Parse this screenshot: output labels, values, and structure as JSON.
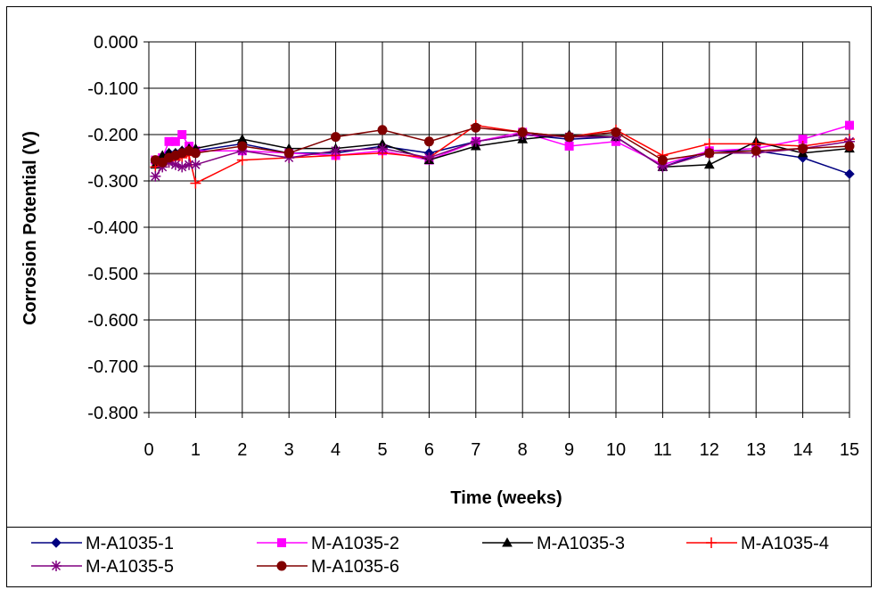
{
  "chart_data": {
    "type": "line",
    "xlabel": "Time (weeks)",
    "ylabel": "Corrosion Potential (V)",
    "xlim": [
      0,
      15
    ],
    "ylim": [
      -0.8,
      0.0
    ],
    "xticks": [
      "0",
      "1",
      "2",
      "3",
      "4",
      "5",
      "6",
      "7",
      "8",
      "9",
      "10",
      "11",
      "12",
      "13",
      "14",
      "15"
    ],
    "yticks": [
      "0.000",
      "-0.100",
      "-0.200",
      "-0.300",
      "-0.400",
      "-0.500",
      "-0.600",
      "-0.700",
      "-0.800"
    ],
    "grid": true,
    "legend_position": "bottom",
    "series": [
      {
        "name": "M-A1035-1",
        "color": "#000080",
        "marker": "diamond",
        "x": [
          0.14,
          0.29,
          0.43,
          0.57,
          0.71,
          0.86,
          1,
          2,
          3,
          4,
          5,
          6,
          7,
          8,
          9,
          10,
          11,
          12,
          13,
          14,
          15
        ],
        "y": [
          -0.26,
          -0.25,
          -0.24,
          -0.24,
          -0.235,
          -0.235,
          -0.235,
          -0.22,
          -0.24,
          -0.24,
          -0.225,
          -0.24,
          -0.215,
          -0.2,
          -0.21,
          -0.205,
          -0.27,
          -0.235,
          -0.235,
          -0.25,
          -0.285
        ]
      },
      {
        "name": "M-A1035-2",
        "color": "#FF00FF",
        "marker": "square",
        "x": [
          0.14,
          0.29,
          0.43,
          0.57,
          0.71,
          0.86,
          1,
          2,
          3,
          4,
          5,
          6,
          7,
          8,
          9,
          10,
          11,
          12,
          13,
          14,
          15
        ],
        "y": [
          -0.255,
          -0.25,
          -0.215,
          -0.215,
          -0.2,
          -0.225,
          -0.235,
          -0.235,
          -0.24,
          -0.245,
          -0.235,
          -0.255,
          -0.215,
          -0.195,
          -0.225,
          -0.215,
          -0.265,
          -0.235,
          -0.23,
          -0.21,
          -0.18
        ]
      },
      {
        "name": "M-A1035-3",
        "color": "#000000",
        "marker": "triangle",
        "x": [
          0.14,
          0.29,
          0.43,
          0.57,
          0.71,
          0.86,
          1,
          2,
          3,
          4,
          5,
          6,
          7,
          8,
          9,
          10,
          11,
          12,
          13,
          14,
          15
        ],
        "y": [
          -0.265,
          -0.245,
          -0.24,
          -0.24,
          -0.235,
          -0.23,
          -0.23,
          -0.21,
          -0.23,
          -0.23,
          -0.22,
          -0.255,
          -0.225,
          -0.21,
          -0.2,
          -0.205,
          -0.27,
          -0.265,
          -0.215,
          -0.24,
          -0.23
        ]
      },
      {
        "name": "M-A1035-4",
        "color": "#FF0000",
        "marker": "plus",
        "x": [
          0.14,
          0.29,
          0.43,
          0.57,
          0.71,
          0.86,
          1,
          2,
          3,
          4,
          5,
          6,
          7,
          8,
          9,
          10,
          11,
          12,
          13,
          14,
          15
        ],
        "y": [
          -0.27,
          -0.265,
          -0.26,
          -0.255,
          -0.25,
          -0.245,
          -0.305,
          -0.255,
          -0.25,
          -0.245,
          -0.24,
          -0.25,
          -0.18,
          -0.195,
          -0.205,
          -0.19,
          -0.245,
          -0.22,
          -0.22,
          -0.225,
          -0.21
        ]
      },
      {
        "name": "M-A1035-5",
        "color": "#800080",
        "marker": "asterisk",
        "x": [
          0.14,
          0.29,
          0.43,
          0.57,
          0.71,
          0.86,
          1,
          2,
          3,
          4,
          5,
          6,
          7,
          8,
          9,
          10,
          11,
          12,
          13,
          14,
          15
        ],
        "y": [
          -0.29,
          -0.27,
          -0.26,
          -0.265,
          -0.27,
          -0.265,
          -0.265,
          -0.235,
          -0.25,
          -0.235,
          -0.23,
          -0.25,
          -0.215,
          -0.2,
          -0.205,
          -0.205,
          -0.27,
          -0.24,
          -0.24,
          -0.23,
          -0.215
        ]
      },
      {
        "name": "M-A1035-6",
        "color": "#800000",
        "marker": "circle",
        "x": [
          0.14,
          0.29,
          0.43,
          0.57,
          0.71,
          0.86,
          1,
          2,
          3,
          4,
          5,
          6,
          7,
          8,
          9,
          10,
          11,
          12,
          13,
          14,
          15
        ],
        "y": [
          -0.255,
          -0.26,
          -0.25,
          -0.245,
          -0.24,
          -0.235,
          -0.24,
          -0.225,
          -0.24,
          -0.205,
          -0.19,
          -0.215,
          -0.185,
          -0.195,
          -0.205,
          -0.195,
          -0.255,
          -0.24,
          -0.235,
          -0.23,
          -0.225
        ]
      }
    ]
  }
}
